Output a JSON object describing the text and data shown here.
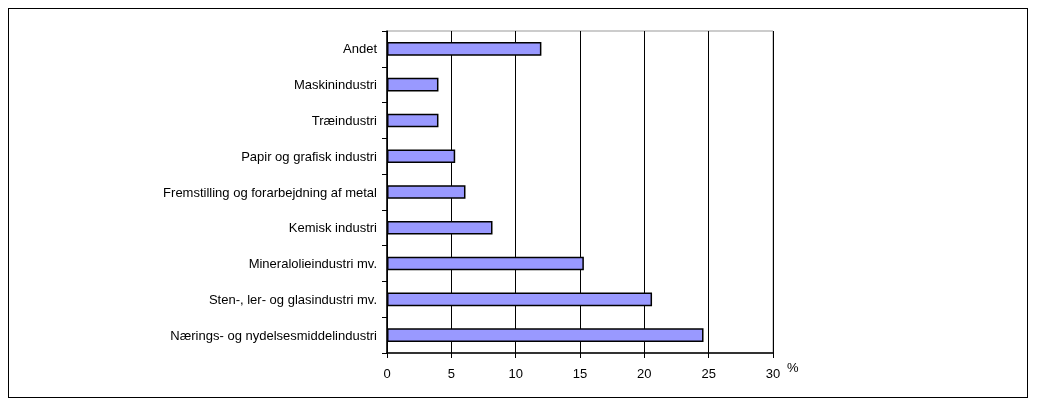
{
  "chart_data": {
    "type": "bar",
    "orientation": "horizontal",
    "categories": [
      "Andet",
      "Maskinindustri",
      "Træindustri",
      "Papir og grafisk industri",
      "Fremstilling og forarbejdning af metal",
      "Kemisk industri",
      "Mineralolieindustri mv.",
      "Sten-, ler- og glasindustri mv.",
      "Nærings- og nydelsesmiddelindustri"
    ],
    "values": [
      12.0,
      4.0,
      4.0,
      5.3,
      6.1,
      8.2,
      15.3,
      20.6,
      24.6
    ],
    "color": "#9999ff",
    "xlim": [
      0,
      30
    ],
    "xticks": [
      0,
      5,
      10,
      15,
      20,
      25,
      30
    ],
    "xlabel": "%",
    "grid": "x"
  }
}
